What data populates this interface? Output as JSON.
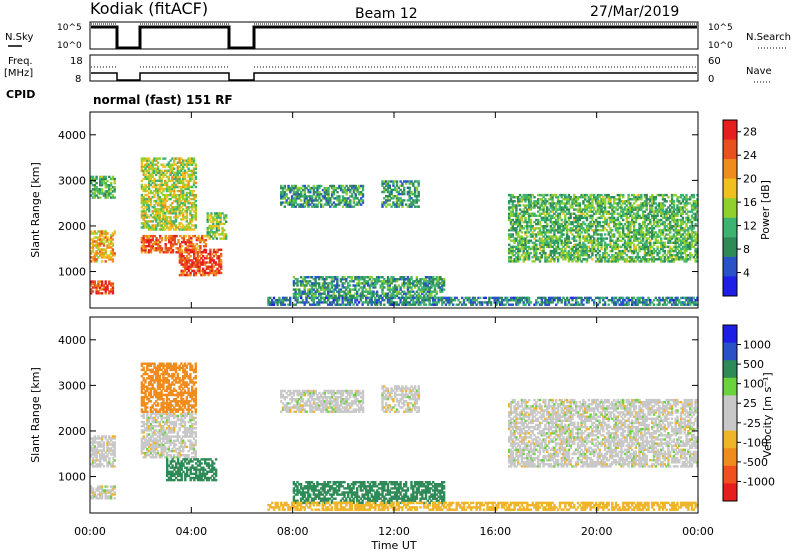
{
  "header": {
    "station": "Kodiak (fitACF)",
    "beam": "Beam 12",
    "date": "27/Mar/2019"
  },
  "strip_labels": {
    "nsky": "N.Sky",
    "nsearch": "N.Search",
    "nsky_top": "10^5",
    "nsky_bottom": "10^0",
    "freq_line1": "Freq.",
    "freq_line2": "[MHz]",
    "freq_top": "18",
    "freq_bottom": "8",
    "nave": "Nave",
    "nave_top": "60",
    "nave_bottom": "0",
    "cpid": "CPID",
    "cpid_value": "normal (fast) 151 RF"
  },
  "colors": {
    "power_scale": [
      "#1e1ee6",
      "#2a52c8",
      "#2e8b57",
      "#3cb371",
      "#8fd02e",
      "#f0c020",
      "#f08c1e",
      "#e8501e",
      "#e61e1e"
    ],
    "velocity_scale": [
      "#e61e1e",
      "#f0501e",
      "#f08c1e",
      "#f0b428",
      "#c8c8c8",
      "#c8c8c8",
      "#6ad23a",
      "#2e8b57",
      "#2a52c8",
      "#1e1ee6"
    ]
  },
  "chart_data": [
    {
      "type": "heatmap",
      "panel": "power",
      "xlabel": "",
      "ylabel": "Slant Range [km]",
      "x_range": [
        "00:00",
        "24:00"
      ],
      "ylim": [
        200,
        4500
      ],
      "yticks": [
        "1000",
        "2000",
        "3000",
        "4000"
      ],
      "colorbar": {
        "label": "Power [dB]",
        "ticks": [
          "4",
          "8",
          "12",
          "16",
          "20",
          "24",
          "28"
        ],
        "range": [
          0,
          30
        ]
      },
      "regions": [
        {
          "t0": 0.0,
          "t1": 1.0,
          "r0": 1200,
          "r1": 1900,
          "value": 20
        },
        {
          "t0": 0.0,
          "t1": 1.0,
          "r0": 500,
          "r1": 800,
          "value": 26
        },
        {
          "t0": 0.0,
          "t1": 1.0,
          "r0": 2600,
          "r1": 3100,
          "value": 12
        },
        {
          "t0": 2.0,
          "t1": 4.6,
          "r0": 1400,
          "r1": 1800,
          "value": 24
        },
        {
          "t0": 3.5,
          "t1": 5.2,
          "r0": 900,
          "r1": 1500,
          "value": 26
        },
        {
          "t0": 2.0,
          "t1": 4.2,
          "r0": 1900,
          "r1": 3500,
          "value": 16
        },
        {
          "t0": 4.6,
          "t1": 5.4,
          "r0": 1700,
          "r1": 2300,
          "value": 14
        },
        {
          "t0": 7.5,
          "t1": 10.8,
          "r0": 2400,
          "r1": 2900,
          "value": 10
        },
        {
          "t0": 11.5,
          "t1": 13.0,
          "r0": 2400,
          "r1": 3000,
          "value": 10
        },
        {
          "t0": 8.0,
          "t1": 14.0,
          "r0": 400,
          "r1": 900,
          "value": 10
        },
        {
          "t0": 16.5,
          "t1": 24.0,
          "r0": 1200,
          "r1": 2700,
          "value": 12
        },
        {
          "t0": 7.0,
          "t1": 24.0,
          "r0": 250,
          "r1": 450,
          "value": 8
        }
      ]
    },
    {
      "type": "heatmap",
      "panel": "velocity",
      "xlabel": "Time UT",
      "ylabel": "Slant Range [km]",
      "x_range": [
        "00:00",
        "24:00"
      ],
      "xticks": [
        "00:00",
        "04:00",
        "08:00",
        "12:00",
        "16:00",
        "20:00",
        "00:00"
      ],
      "ylim": [
        200,
        4500
      ],
      "yticks": [
        "1000",
        "2000",
        "3000",
        "4000"
      ],
      "colorbar": {
        "label": "Velocity [m s⁻¹]",
        "ticks": [
          "1000",
          "500",
          "100",
          "25",
          "-25",
          "-100",
          "-500",
          "-1000"
        ]
      },
      "regions": [
        {
          "t0": 0.0,
          "t1": 1.0,
          "r0": 1200,
          "r1": 1900,
          "value": 0
        },
        {
          "t0": 0.0,
          "t1": 1.0,
          "r0": 500,
          "r1": 800,
          "value": 0
        },
        {
          "t0": 2.0,
          "t1": 4.2,
          "r0": 1400,
          "r1": 2400,
          "value": 0
        },
        {
          "t0": 2.0,
          "t1": 4.2,
          "r0": 2400,
          "r1": 3500,
          "value": -300
        },
        {
          "t0": 3.0,
          "t1": 5.0,
          "r0": 900,
          "r1": 1400,
          "value": 150
        },
        {
          "t0": 7.5,
          "t1": 10.8,
          "r0": 2400,
          "r1": 2900,
          "value": 0
        },
        {
          "t0": 11.5,
          "t1": 13.0,
          "r0": 2400,
          "r1": 3000,
          "value": 0
        },
        {
          "t0": 8.0,
          "t1": 14.0,
          "r0": 400,
          "r1": 900,
          "value": 200
        },
        {
          "t0": 16.5,
          "t1": 24.0,
          "r0": 1200,
          "r1": 2700,
          "value": 0
        },
        {
          "t0": 7.0,
          "t1": 24.0,
          "r0": 250,
          "r1": 450,
          "value": -60
        }
      ]
    }
  ]
}
